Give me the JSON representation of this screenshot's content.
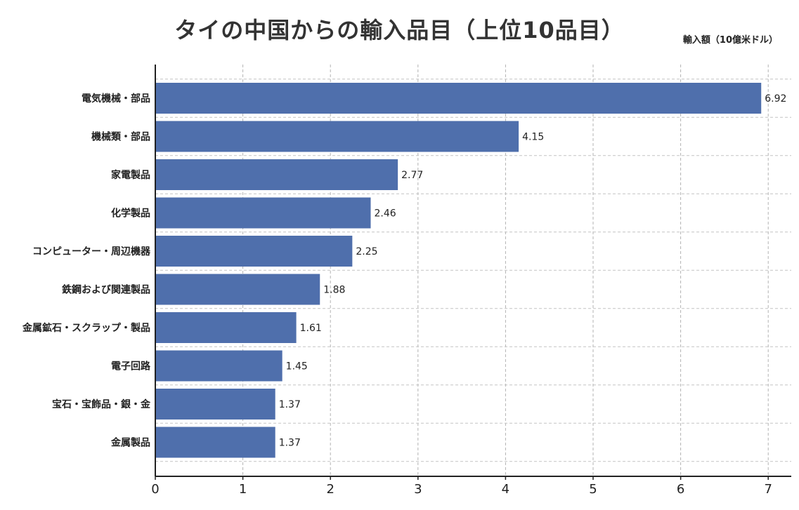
{
  "chart_data": {
    "type": "bar",
    "orientation": "horizontal",
    "title": "タイの中国からの輸入品目（上位10品目）",
    "unit_label": "輸入額（10億米ドル）",
    "categories": [
      "電気機械・部品",
      "機械類・部品",
      "家電製品",
      "化学製品",
      "コンピューター・周辺機器",
      "鉄鋼および関連製品",
      "金属鉱石・スクラップ・製品",
      "電子回路",
      "宝石・宝飾品・銀・金",
      "金属製品"
    ],
    "values": [
      6.92,
      4.15,
      2.77,
      2.46,
      2.25,
      1.88,
      1.61,
      1.45,
      1.37,
      1.37
    ],
    "value_labels": [
      "6.92",
      "4.15",
      "2.77",
      "2.46",
      "2.25",
      "1.88",
      "1.61",
      "1.45",
      "1.37",
      "1.37"
    ],
    "xlim": [
      0,
      7
    ],
    "x_ticks": [
      "0",
      "1",
      "2",
      "3",
      "4",
      "5",
      "6",
      "7"
    ],
    "grid": true,
    "bar_color": "#4f6fac"
  }
}
